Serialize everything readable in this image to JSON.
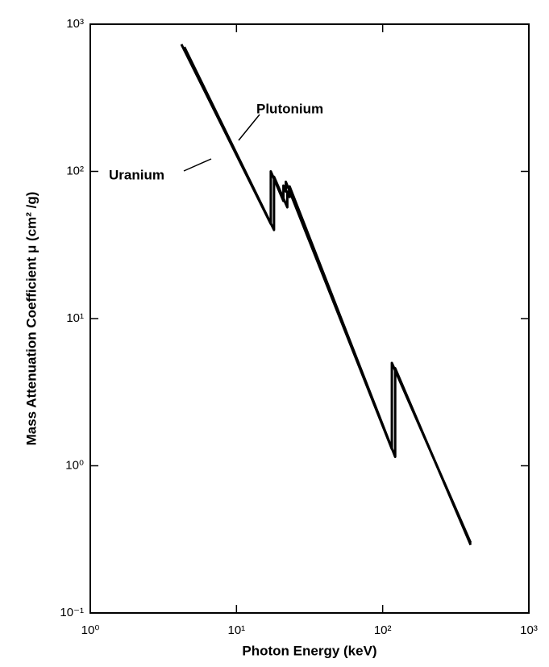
{
  "chart_data": {
    "type": "line",
    "xlabel": "Photon Energy (keV)",
    "ylabel": "Mass Attenuation Coefficient μ (cm² /g)",
    "xscale": "log",
    "yscale": "log",
    "xlim": [
      1,
      1000
    ],
    "ylim": [
      0.1,
      1000
    ],
    "xticks": [
      {
        "value": 1,
        "label": "10⁰"
      },
      {
        "value": 10,
        "label": "10¹"
      },
      {
        "value": 100,
        "label": "10²"
      },
      {
        "value": 1000,
        "label": "10³"
      }
    ],
    "yticks": [
      {
        "value": 0.1,
        "label": "10⁻¹"
      },
      {
        "value": 1,
        "label": "10⁰"
      },
      {
        "value": 10,
        "label": "10¹"
      },
      {
        "value": 100,
        "label": "10²"
      },
      {
        "value": 1000,
        "label": "10³"
      }
    ],
    "legend": false,
    "annotations": [
      "Uranium",
      "Plutonium"
    ],
    "series": [
      {
        "name": "Uranium",
        "color": "#000000",
        "x": [
          4.2,
          17.17,
          17.17,
          20.95,
          20.95,
          21.76,
          21.76,
          115.6,
          115.6,
          400
        ],
        "values": [
          730,
          44,
          100,
          63,
          80,
          73,
          85,
          1.3,
          5.0,
          0.3
        ]
      },
      {
        "name": "Plutonium",
        "color": "#000000",
        "x": [
          4.4,
          18.06,
          18.06,
          22.27,
          22.27,
          23.1,
          23.1,
          121.8,
          121.8,
          400
        ],
        "values": [
          700,
          40,
          92,
          57,
          73,
          67,
          79,
          1.15,
          4.6,
          0.29
        ]
      }
    ]
  }
}
